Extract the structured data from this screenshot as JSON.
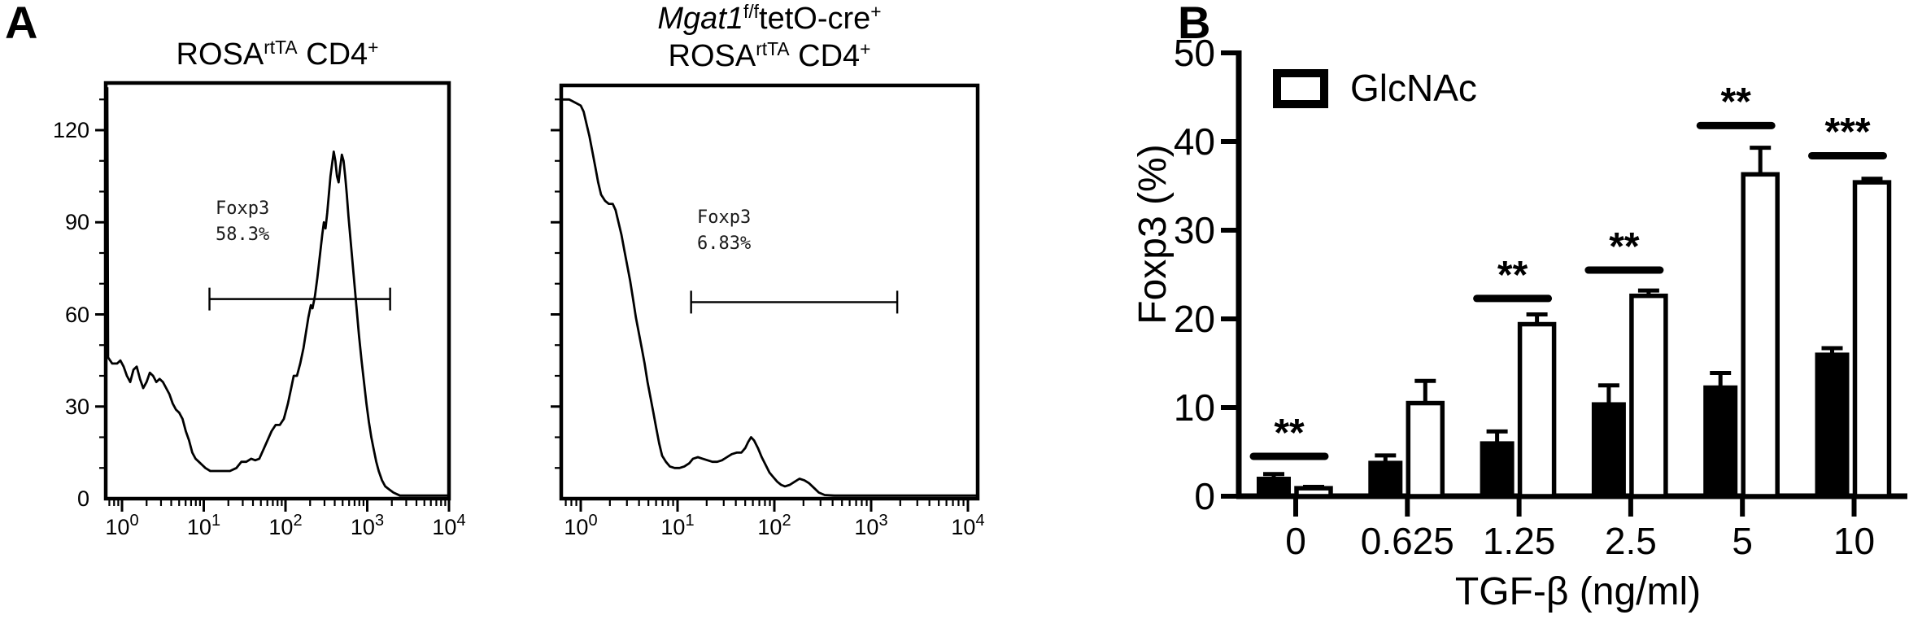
{
  "figure_labels": {
    "panel_a": "A",
    "panel_b": "B"
  },
  "panel_a": {
    "left": {
      "title_segments": [
        {
          "text": "ROSA"
        },
        {
          "text": "rtTA",
          "sup": true
        },
        {
          "text": " CD4"
        },
        {
          "text": "+",
          "sup": true
        }
      ],
      "y_tick_labels": [
        "0",
        "30",
        "60",
        "90",
        "120"
      ],
      "x_tick_base": "10",
      "x_tick_exponents": [
        "0",
        "1",
        "2",
        "3",
        "4"
      ],
      "gate_label_lines": [
        "Foxp3",
        "58.3%"
      ]
    },
    "right": {
      "title_line1_segments": [
        {
          "text": "Mgat1",
          "italic": true
        },
        {
          "text": "f/f",
          "sup": true
        },
        {
          "text": "tetO-cre"
        },
        {
          "text": "+",
          "sup": true
        }
      ],
      "title_line2_segments": [
        {
          "text": "ROSA"
        },
        {
          "text": "rtTA",
          "sup": true
        },
        {
          "text": " CD4"
        },
        {
          "text": "+",
          "sup": true
        }
      ],
      "x_tick_base": "10",
      "x_tick_exponents": [
        "0",
        "1",
        "2",
        "3",
        "4"
      ],
      "gate_label_lines": [
        "Foxp3",
        "6.83%"
      ]
    }
  },
  "panel_b": {
    "legend_label": "GlcNAc",
    "ylabel": "Foxp3 (%)",
    "xlabel": "TGF-β (ng/ml)",
    "y_tick_labels": [
      "0",
      "10",
      "20",
      "30",
      "40",
      "50"
    ]
  },
  "chart_data": [
    {
      "type": "line",
      "panel": "A-left",
      "title": "ROSA rtTA CD4+",
      "x_scale": "log10",
      "x_range_log": [
        -0.2,
        4.02
      ],
      "xlabel_ticks": [
        "10^0",
        "10^1",
        "10^2",
        "10^3",
        "10^4"
      ],
      "y_ticks": [
        0,
        30,
        60,
        90,
        120
      ],
      "gate": {
        "log_from": 1.07,
        "log_to": 3.28,
        "count_level": 65,
        "label": "Foxp3 58.3%"
      },
      "points_log_count": [
        [
          -0.18,
          134
        ],
        [
          -0.17,
          46
        ],
        [
          -0.12,
          44
        ],
        [
          -0.06,
          44
        ],
        [
          -0.02,
          45
        ],
        [
          0.02,
          43
        ],
        [
          0.06,
          40
        ],
        [
          0.1,
          38
        ],
        [
          0.14,
          42
        ],
        [
          0.18,
          43
        ],
        [
          0.22,
          39
        ],
        [
          0.26,
          36
        ],
        [
          0.3,
          38
        ],
        [
          0.34,
          41
        ],
        [
          0.38,
          40
        ],
        [
          0.42,
          38
        ],
        [
          0.46,
          39
        ],
        [
          0.5,
          38
        ],
        [
          0.54,
          36
        ],
        [
          0.58,
          34
        ],
        [
          0.62,
          31
        ],
        [
          0.66,
          29
        ],
        [
          0.7,
          28
        ],
        [
          0.74,
          26
        ],
        [
          0.78,
          22
        ],
        [
          0.82,
          19
        ],
        [
          0.86,
          15
        ],
        [
          0.9,
          13
        ],
        [
          0.94,
          12
        ],
        [
          0.98,
          11
        ],
        [
          1.02,
          10
        ],
        [
          1.08,
          9
        ],
        [
          1.16,
          9
        ],
        [
          1.24,
          9
        ],
        [
          1.32,
          9
        ],
        [
          1.4,
          10
        ],
        [
          1.46,
          12
        ],
        [
          1.52,
          12
        ],
        [
          1.58,
          13
        ],
        [
          1.63,
          12.5
        ],
        [
          1.68,
          13
        ],
        [
          1.73,
          16
        ],
        [
          1.78,
          19
        ],
        [
          1.83,
          22
        ],
        [
          1.88,
          24
        ],
        [
          1.93,
          24
        ],
        [
          1.98,
          26
        ],
        [
          2.03,
          31
        ],
        [
          2.07,
          36
        ],
        [
          2.1,
          40
        ],
        [
          2.14,
          40
        ],
        [
          2.18,
          44
        ],
        [
          2.22,
          49
        ],
        [
          2.25,
          54
        ],
        [
          2.28,
          59
        ],
        [
          2.31,
          63
        ],
        [
          2.33,
          62
        ],
        [
          2.36,
          66
        ],
        [
          2.39,
          72
        ],
        [
          2.42,
          79
        ],
        [
          2.45,
          86
        ],
        [
          2.47,
          90
        ],
        [
          2.49,
          88
        ],
        [
          2.51,
          93
        ],
        [
          2.53,
          99
        ],
        [
          2.55,
          105
        ],
        [
          2.57,
          109
        ],
        [
          2.59,
          113
        ],
        [
          2.61,
          110
        ],
        [
          2.63,
          105
        ],
        [
          2.65,
          103
        ],
        [
          2.67,
          108
        ],
        [
          2.69,
          112
        ],
        [
          2.71,
          110
        ],
        [
          2.73,
          105
        ],
        [
          2.75,
          99
        ],
        [
          2.77,
          92
        ],
        [
          2.79,
          86
        ],
        [
          2.81,
          80
        ],
        [
          2.84,
          71
        ],
        [
          2.87,
          62
        ],
        [
          2.9,
          53
        ],
        [
          2.93,
          45
        ],
        [
          2.96,
          38
        ],
        [
          2.99,
          31
        ],
        [
          3.02,
          25
        ],
        [
          3.05,
          20
        ],
        [
          3.08,
          16
        ],
        [
          3.11,
          12
        ],
        [
          3.14,
          9
        ],
        [
          3.18,
          6
        ],
        [
          3.22,
          4
        ],
        [
          3.27,
          3
        ],
        [
          3.32,
          2
        ],
        [
          3.4,
          1
        ],
        [
          3.6,
          1
        ],
        [
          3.8,
          1
        ],
        [
          4.02,
          1
        ]
      ]
    },
    {
      "type": "line",
      "panel": "A-right",
      "title": "Mgat1 f/f tetO-cre+ ROSA rtTA CD4+",
      "x_scale": "log10",
      "x_range_log": [
        -0.2,
        4.1
      ],
      "xlabel_ticks": [
        "10^0",
        "10^1",
        "10^2",
        "10^3",
        "10^4"
      ],
      "y_ticks": [
        0,
        30,
        60,
        90,
        120
      ],
      "y_tick_labels_visible": false,
      "gate": {
        "log_from": 1.14,
        "log_to": 3.27,
        "count_level": 64,
        "label": "Foxp3 6.83%"
      },
      "points_log_count": [
        [
          -0.2,
          130
        ],
        [
          -0.12,
          130
        ],
        [
          -0.06,
          129
        ],
        [
          0.0,
          128
        ],
        [
          0.03,
          126
        ],
        [
          0.06,
          122
        ],
        [
          0.09,
          118
        ],
        [
          0.12,
          113
        ],
        [
          0.15,
          108
        ],
        [
          0.18,
          103
        ],
        [
          0.21,
          99
        ],
        [
          0.25,
          97
        ],
        [
          0.29,
          96
        ],
        [
          0.33,
          96
        ],
        [
          0.36,
          94
        ],
        [
          0.39,
          90
        ],
        [
          0.42,
          86
        ],
        [
          0.45,
          81
        ],
        [
          0.48,
          76
        ],
        [
          0.51,
          71
        ],
        [
          0.54,
          65
        ],
        [
          0.57,
          59
        ],
        [
          0.6,
          54
        ],
        [
          0.63,
          49
        ],
        [
          0.66,
          44
        ],
        [
          0.69,
          38
        ],
        [
          0.72,
          33
        ],
        [
          0.75,
          28
        ],
        [
          0.78,
          23
        ],
        [
          0.81,
          18
        ],
        [
          0.84,
          14
        ],
        [
          0.88,
          12
        ],
        [
          0.92,
          10.5
        ],
        [
          0.97,
          10
        ],
        [
          1.02,
          10
        ],
        [
          1.07,
          10.5
        ],
        [
          1.12,
          11.5
        ],
        [
          1.16,
          13
        ],
        [
          1.21,
          13.5
        ],
        [
          1.26,
          13
        ],
        [
          1.31,
          12.5
        ],
        [
          1.36,
          12
        ],
        [
          1.41,
          12
        ],
        [
          1.46,
          12.5
        ],
        [
          1.51,
          13.5
        ],
        [
          1.56,
          14.5
        ],
        [
          1.61,
          15
        ],
        [
          1.66,
          15
        ],
        [
          1.7,
          16.5
        ],
        [
          1.73,
          18.5
        ],
        [
          1.76,
          20
        ],
        [
          1.79,
          19
        ],
        [
          1.83,
          16.5
        ],
        [
          1.87,
          13.5
        ],
        [
          1.91,
          11
        ],
        [
          1.95,
          8.5
        ],
        [
          1.99,
          7
        ],
        [
          2.03,
          5.5
        ],
        [
          2.07,
          4.5
        ],
        [
          2.11,
          4
        ],
        [
          2.16,
          4.5
        ],
        [
          2.21,
          5.5
        ],
        [
          2.26,
          6.5
        ],
        [
          2.31,
          6
        ],
        [
          2.36,
          5
        ],
        [
          2.41,
          3.5
        ],
        [
          2.46,
          2
        ],
        [
          2.52,
          1.2
        ],
        [
          2.62,
          1
        ],
        [
          2.8,
          1
        ],
        [
          3.2,
          1
        ],
        [
          4.1,
          1
        ]
      ]
    },
    {
      "type": "bar",
      "panel": "B",
      "categories": [
        "0",
        "0.625",
        "1.25",
        "2.5",
        "5",
        "10"
      ],
      "xlabel": "TGF-β (ng/ml)",
      "ylabel": "Foxp3 (%)",
      "ylim": [
        0,
        50
      ],
      "y_ticks": [
        0,
        10,
        20,
        30,
        40,
        50
      ],
      "legend_position": "top-left-inside",
      "series": [
        {
          "fill": "#000000",
          "legend_label": null,
          "values": [
            2.2,
            4.0,
            6.2,
            10.6,
            12.5,
            16.2
          ],
          "errors_plus": [
            0.3,
            0.6,
            1.1,
            1.9,
            1.4,
            0.5
          ]
        },
        {
          "fill": "#ffffff",
          "legend_label": "GlcNAc",
          "values": [
            0.9,
            10.5,
            19.4,
            22.6,
            36.3,
            35.4
          ],
          "errors_plus": [
            0.15,
            2.5,
            1.1,
            0.6,
            3.0,
            0.4
          ]
        }
      ],
      "significance": [
        {
          "category": "0",
          "stars": "**",
          "line_value": 4.5
        },
        {
          "category": "1.25",
          "stars": "**",
          "line_value": 22.3
        },
        {
          "category": "2.5",
          "stars": "**",
          "line_value": 25.5
        },
        {
          "category": "5",
          "stars": "**",
          "line_value": 41.8
        },
        {
          "category": "10",
          "stars": "***",
          "line_value": 38.4
        }
      ]
    }
  ]
}
